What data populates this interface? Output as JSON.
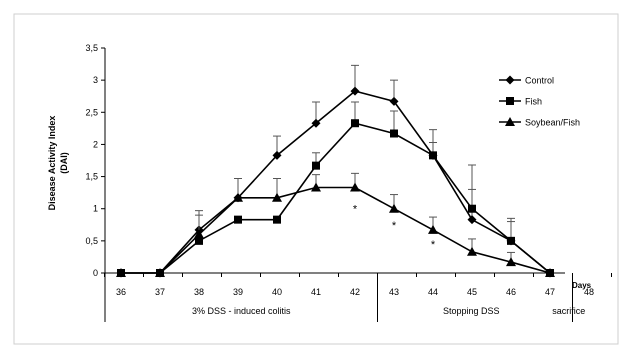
{
  "chart_data": {
    "type": "line",
    "title": "",
    "ylabel_lines": [
      "Disease Activity Index",
      "(DAI)"
    ],
    "xlabel": "Days",
    "ylim": [
      0,
      3.5
    ],
    "y_ticks": [
      "0",
      "0,5",
      "1",
      "1,5",
      "2",
      "2,5",
      "3",
      "3,5"
    ],
    "y_tick_values": [
      0,
      0.5,
      1,
      1.5,
      2,
      2.5,
      3,
      3.5
    ],
    "categories": [
      "36",
      "37",
      "38",
      "39",
      "40",
      "41",
      "42",
      "43",
      "44",
      "45",
      "46",
      "47",
      "48"
    ],
    "grid": false,
    "legend_position": "top-right",
    "series": [
      {
        "name": "Control",
        "marker": "diamond",
        "values": [
          0,
          0,
          0.67,
          1.17,
          1.83,
          2.33,
          2.83,
          2.67,
          1.83,
          0.83,
          0.5,
          0,
          null
        ],
        "errors": [
          0,
          0,
          0.3,
          0.3,
          0.3,
          0.33,
          0.4,
          0.33,
          0.4,
          0.85,
          0.35,
          0,
          null
        ]
      },
      {
        "name": "Fish",
        "marker": "square",
        "values": [
          0,
          0,
          0.5,
          0.83,
          0.83,
          1.67,
          2.33,
          2.17,
          1.83,
          1.0,
          0.5,
          0,
          null
        ],
        "errors": [
          0,
          0,
          0,
          0,
          0,
          0.2,
          0.33,
          0.35,
          0.2,
          0.3,
          0.3,
          0,
          null
        ]
      },
      {
        "name": "Soybean/Fish",
        "marker": "triangle",
        "values": [
          0,
          0,
          0.6,
          1.17,
          1.17,
          1.33,
          1.33,
          1.0,
          0.67,
          0.33,
          0.17,
          0,
          null
        ],
        "errors": [
          0,
          0,
          0.3,
          0.3,
          0.3,
          0.2,
          0.22,
          0.22,
          0.2,
          0.2,
          0.15,
          0,
          null
        ]
      }
    ],
    "significance_marks": [
      {
        "day": "42",
        "value": 1.0,
        "text": "*"
      },
      {
        "day": "43",
        "value": 0.75,
        "text": "*"
      },
      {
        "day": "44",
        "value": 0.45,
        "text": "*"
      }
    ],
    "phases": [
      {
        "label": "3% DSS - induced colitis",
        "from": "36",
        "to": "42"
      },
      {
        "label": "Stopping DSS",
        "from": "43",
        "to": "47"
      },
      {
        "label": "sacrifice",
        "from": "48",
        "to": "48"
      }
    ]
  }
}
